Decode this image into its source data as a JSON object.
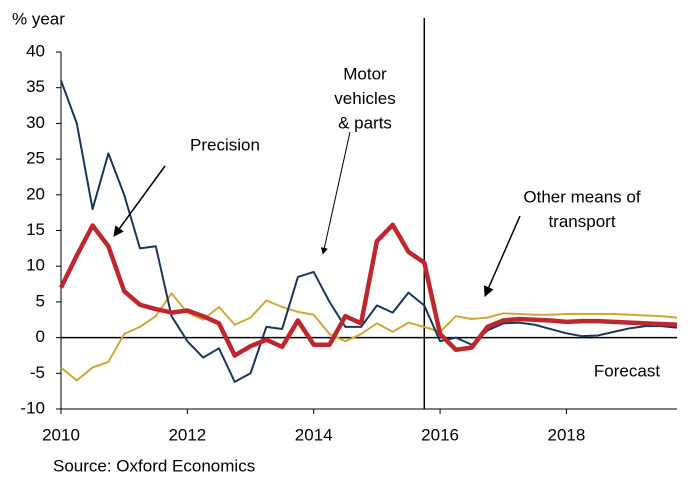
{
  "chart_data": {
    "type": "line",
    "ylabel": "% year",
    "source": "Source: Oxford Economics",
    "x": [
      2010,
      2010.25,
      2010.5,
      2010.75,
      2011,
      2011.25,
      2011.5,
      2011.75,
      2012,
      2012.25,
      2012.5,
      2012.75,
      2013,
      2013.25,
      2013.5,
      2013.75,
      2014,
      2014.25,
      2014.5,
      2014.75,
      2015,
      2015.25,
      2015.5,
      2015.75,
      2016,
      2016.25,
      2016.5,
      2016.75,
      2017,
      2017.25,
      2017.5,
      2017.75,
      2018,
      2018.25,
      2018.5,
      2018.75,
      2019,
      2019.25,
      2019.5,
      2019.75
    ],
    "series": [
      {
        "color": "#d4a637",
        "width": 2,
        "values": [
          -4.2,
          -6,
          -4.2,
          -3.4,
          0.5,
          1.5,
          3,
          6.2,
          3.5,
          2.5,
          4.3,
          1.8,
          2.8,
          5.2,
          4.3,
          3.6,
          3.2,
          0.5,
          -0.5,
          0.5,
          2,
          0.8,
          2.1,
          1.5,
          0.8,
          3,
          2.6,
          2.8,
          3.4,
          3.3,
          3.2,
          3.2,
          3.3,
          3.3,
          3.3,
          3.3,
          3.2,
          3.1,
          3,
          2.8
        ]
      },
      {
        "color": "#17375e",
        "width": 2,
        "values": [
          36,
          30,
          18,
          25.8,
          20,
          12.5,
          12.8,
          3,
          -0.5,
          -2.8,
          -1.5,
          -6.2,
          -5,
          1.5,
          1.2,
          8.5,
          9.2,
          5,
          1.5,
          1.5,
          4.5,
          3.5,
          6.3,
          4.5,
          -0.5,
          0,
          -1,
          1,
          2,
          2.1,
          1.8,
          1.2,
          0.6,
          0.2,
          0.3,
          0.8,
          1.3,
          1.6,
          1.6,
          1.4
        ]
      },
      {
        "color": "#c0272d",
        "width": 4.5,
        "values": [
          7,
          11.5,
          15.7,
          12.8,
          6.5,
          4.6,
          4,
          3.5,
          3.8,
          3,
          2,
          -2.5,
          -1.2,
          -0.3,
          -1.3,
          2.4,
          -1,
          -1,
          3,
          2,
          13.5,
          15.8,
          12,
          10.5,
          0.5,
          -1.7,
          -1.4,
          1.5,
          2.4,
          2.6,
          2.5,
          2.4,
          2.2,
          2.3,
          2.3,
          2.2,
          2.1,
          2,
          1.9,
          1.8
        ]
      }
    ],
    "xlim": [
      2010,
      2019.75
    ],
    "xticks": [
      2010,
      2012,
      2014,
      2016,
      2018
    ],
    "ylim": [
      -10,
      40
    ],
    "yticks": [
      40,
      35,
      30,
      25,
      20,
      15,
      10,
      5,
      0,
      -5,
      -10
    ],
    "vline": 2015.75,
    "annotations": [
      {
        "lines": [
          "Precision"
        ]
      },
      {
        "lines": [
          "Motor",
          "vehicles",
          "& parts"
        ]
      },
      {
        "lines": [
          "Other means of",
          "transport"
        ]
      },
      {
        "lines": [
          "Forecast"
        ]
      }
    ]
  }
}
